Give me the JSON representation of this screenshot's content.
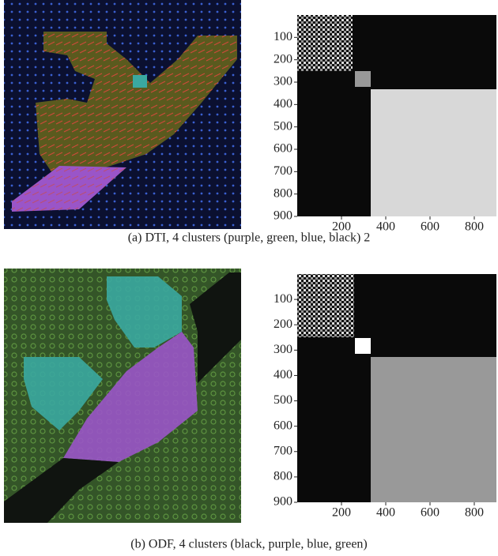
{
  "figures": [
    {
      "caption": "(a)  DTI, 4 clusters (purple, green, blue, black) 2",
      "matrix": {
        "xlim": [
          0,
          900
        ],
        "ylim": [
          0,
          900
        ],
        "xticks": [
          200,
          400,
          600,
          800
        ],
        "yticks": [
          100,
          200,
          300,
          400,
          500,
          600,
          700,
          800,
          900
        ]
      }
    },
    {
      "caption": "(b)  ODF, 4 clusters (black, purple, blue, green)",
      "matrix": {
        "xlim": [
          0,
          900
        ],
        "ylim": [
          0,
          900
        ],
        "xticks": [
          200,
          400,
          600,
          800
        ],
        "yticks": [
          100,
          200,
          300,
          400,
          500,
          600,
          700,
          800,
          900
        ]
      }
    }
  ]
}
